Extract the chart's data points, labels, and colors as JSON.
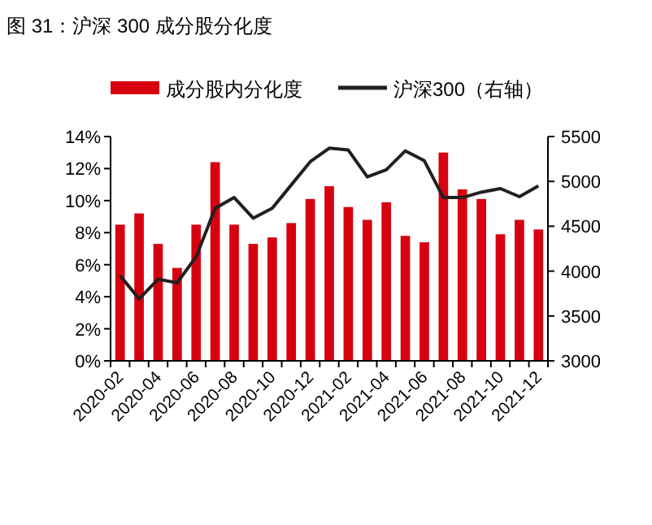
{
  "chart_data": {
    "type": "bar",
    "title": "图 31：沪深 300 成分股分化度",
    "categories": [
      "2020-02",
      null,
      "2020-04",
      null,
      "2020-06",
      null,
      "2020-08",
      null,
      "2020-10",
      null,
      "2020-12",
      null,
      "2021-02",
      null,
      "2021-04",
      null,
      "2021-06",
      null,
      "2021-08",
      null,
      "2021-10",
      null,
      "2021-12"
    ],
    "series": [
      {
        "name": "成分股内分化度",
        "color": "#d7000f",
        "values": [
          8.5,
          9.2,
          7.3,
          5.8,
          8.5,
          12.4,
          8.5,
          7.3,
          7.7,
          8.6,
          10.1,
          10.9,
          9.6,
          8.8,
          9.9,
          7.8,
          7.4,
          13.0,
          10.7,
          10.1,
          7.9,
          8.8,
          8.2
        ]
      },
      {
        "name": "沪深300（右轴）",
        "type": "line",
        "axis": "y2",
        "color": "#231f20",
        "values": [
          3950,
          3690,
          3910,
          3870,
          4160,
          4700,
          4820,
          4590,
          4700,
          4960,
          5220,
          5370,
          5350,
          5050,
          5130,
          5340,
          5230,
          4820,
          4820,
          4880,
          4920,
          4830,
          4950
        ]
      }
    ],
    "ylim": [
      0,
      14
    ],
    "yticks": [
      {
        "value": 0,
        "label": "0%"
      },
      {
        "value": 2,
        "label": "2%"
      },
      {
        "value": 4,
        "label": "4%"
      },
      {
        "value": 6,
        "label": "6%"
      },
      {
        "value": 8,
        "label": "8%"
      },
      {
        "value": 10,
        "label": "10%"
      },
      {
        "value": 12,
        "label": "12%"
      },
      {
        "value": 14,
        "label": "14%"
      }
    ],
    "y2lim": [
      3000,
      5500
    ],
    "y2ticks": [
      3000,
      3500,
      4000,
      4500,
      5000,
      5500
    ],
    "grid": false,
    "legend": "top"
  }
}
